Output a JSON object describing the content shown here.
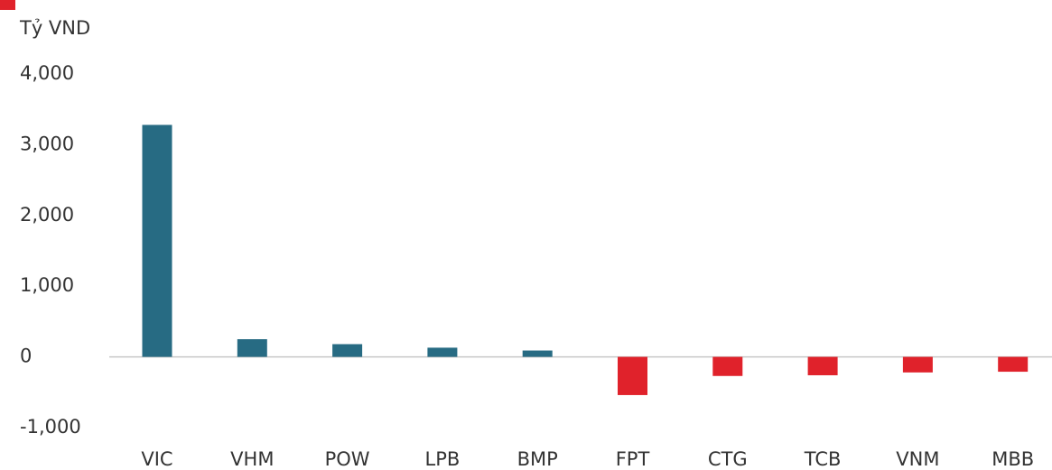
{
  "chart_data": {
    "type": "bar",
    "y_axis_label": "Tỷ VND",
    "categories": [
      "VIC",
      "VHM",
      "POW",
      "LPB",
      "BMP",
      "FPT",
      "CTG",
      "TCB",
      "VNM",
      "MBB"
    ],
    "values": [
      3280,
      250,
      180,
      130,
      90,
      -540,
      -270,
      -260,
      -220,
      -210
    ],
    "color_positive": "#276b83",
    "color_negative": "#e0222b",
    "ylim": [
      -1000,
      4000
    ],
    "yticks": [
      {
        "value": 4000,
        "label": "4,000"
      },
      {
        "value": 3000,
        "label": "3,000"
      },
      {
        "value": 2000,
        "label": "2,000"
      },
      {
        "value": 1000,
        "label": "1,000"
      },
      0,
      {
        "value": -1000,
        "label": "-1,000"
      }
    ],
    "grid": false
  }
}
